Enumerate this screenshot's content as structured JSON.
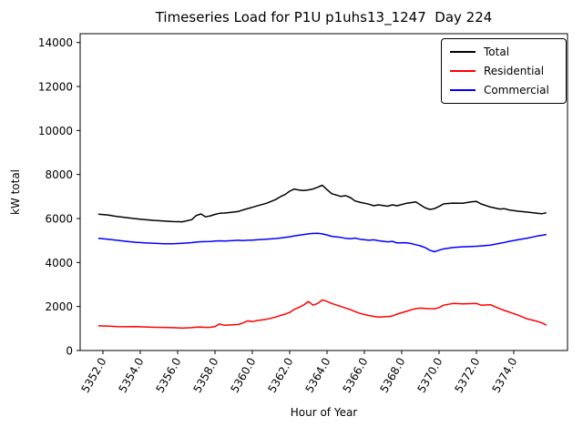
{
  "title": "Timeseries Load for P1U p1uhs13_1247  Day 224",
  "chart_data": {
    "type": "line",
    "title": "Timeseries Load for P1U p1uhs13_1247  Day 224",
    "xlabel": "Hour of Year",
    "ylabel": "kW total",
    "xlim": [
      5350.78,
      5376.88
    ],
    "ylim": [
      0,
      14400
    ],
    "grid": false,
    "legend_position": "upper right",
    "x_ticks": [
      5352,
      5354,
      5356,
      5358,
      5360,
      5362,
      5364,
      5366,
      5368,
      5370,
      5372,
      5374
    ],
    "x_tick_labels": [
      "5352.0",
      "5354.0",
      "5356.0",
      "5358.0",
      "5360.0",
      "5362.0",
      "5364.0",
      "5366.0",
      "5368.0",
      "5370.0",
      "5372.0",
      "5374.0"
    ],
    "x_tick_rotation": 60,
    "y_ticks": [
      0,
      2000,
      4000,
      6000,
      8000,
      10000,
      12000,
      14000
    ],
    "x": [
      5351.75,
      5352.25,
      5352.75,
      5353.25,
      5353.75,
      5354.25,
      5354.75,
      5355.25,
      5355.75,
      5356.25,
      5356.75,
      5357.0,
      5357.25,
      5357.5,
      5357.75,
      5358.0,
      5358.25,
      5358.5,
      5358.75,
      5359.25,
      5359.5,
      5359.75,
      5360.0,
      5360.25,
      5360.75,
      5361.25,
      5361.5,
      5361.75,
      5362.0,
      5362.25,
      5362.5,
      5362.75,
      5363.0,
      5363.25,
      5363.5,
      5363.75,
      5364.0,
      5364.25,
      5364.75,
      5365.0,
      5365.25,
      5365.5,
      5365.75,
      5366.25,
      5366.5,
      5366.75,
      5367.25,
      5367.5,
      5367.75,
      5368.25,
      5368.5,
      5368.75,
      5369.0,
      5369.25,
      5369.5,
      5369.75,
      5370.0,
      5370.25,
      5370.75,
      5371.25,
      5371.75,
      5372.0,
      5372.25,
      5372.75,
      5373.25,
      5373.5,
      5373.75,
      5374.25,
      5374.75,
      5375.25,
      5375.5,
      5375.75
    ],
    "series": [
      {
        "name": "Total",
        "color": "#000000",
        "values": [
          6200,
          6160,
          6090,
          6040,
          5990,
          5950,
          5915,
          5890,
          5860,
          5850,
          5945,
          6135,
          6205,
          6075,
          6120,
          6185,
          6235,
          6250,
          6270,
          6320,
          6390,
          6450,
          6510,
          6570,
          6690,
          6860,
          6990,
          7090,
          7240,
          7340,
          7290,
          7270,
          7300,
          7340,
          7420,
          7510,
          7310,
          7130,
          7000,
          7040,
          6950,
          6800,
          6740,
          6650,
          6580,
          6620,
          6560,
          6620,
          6580,
          6690,
          6720,
          6755,
          6620,
          6490,
          6415,
          6445,
          6550,
          6665,
          6700,
          6690,
          6760,
          6780,
          6660,
          6520,
          6430,
          6445,
          6390,
          6330,
          6290,
          6240,
          6215,
          6260
        ]
      },
      {
        "name": "Residential",
        "color": "#ff0000",
        "values": [
          1120,
          1110,
          1090,
          1080,
          1090,
          1070,
          1055,
          1050,
          1040,
          1020,
          1040,
          1060,
          1065,
          1050,
          1055,
          1090,
          1210,
          1145,
          1160,
          1185,
          1250,
          1350,
          1310,
          1360,
          1420,
          1520,
          1590,
          1650,
          1730,
          1870,
          1960,
          2070,
          2230,
          2060,
          2140,
          2300,
          2230,
          2140,
          2000,
          1930,
          1860,
          1770,
          1690,
          1590,
          1550,
          1520,
          1545,
          1570,
          1655,
          1780,
          1850,
          1905,
          1930,
          1915,
          1900,
          1890,
          1955,
          2060,
          2140,
          2120,
          2130,
          2140,
          2060,
          2080,
          1900,
          1820,
          1750,
          1600,
          1430,
          1330,
          1260,
          1150
        ]
      },
      {
        "name": "Commercial",
        "color": "#0000ff",
        "values": [
          5100,
          5060,
          5010,
          4960,
          4920,
          4890,
          4870,
          4855,
          4855,
          4875,
          4905,
          4930,
          4945,
          4950,
          4955,
          4975,
          4985,
          4975,
          4985,
          5010,
          5000,
          5010,
          5020,
          5030,
          5060,
          5090,
          5110,
          5140,
          5170,
          5210,
          5240,
          5270,
          5300,
          5320,
          5330,
          5300,
          5250,
          5190,
          5140,
          5100,
          5080,
          5110,
          5060,
          5010,
          5030,
          4990,
          4940,
          4960,
          4890,
          4900,
          4860,
          4810,
          4760,
          4680,
          4560,
          4490,
          4560,
          4620,
          4680,
          4715,
          4730,
          4740,
          4755,
          4790,
          4870,
          4910,
          4960,
          5040,
          5110,
          5200,
          5235,
          5270
        ]
      }
    ]
  }
}
